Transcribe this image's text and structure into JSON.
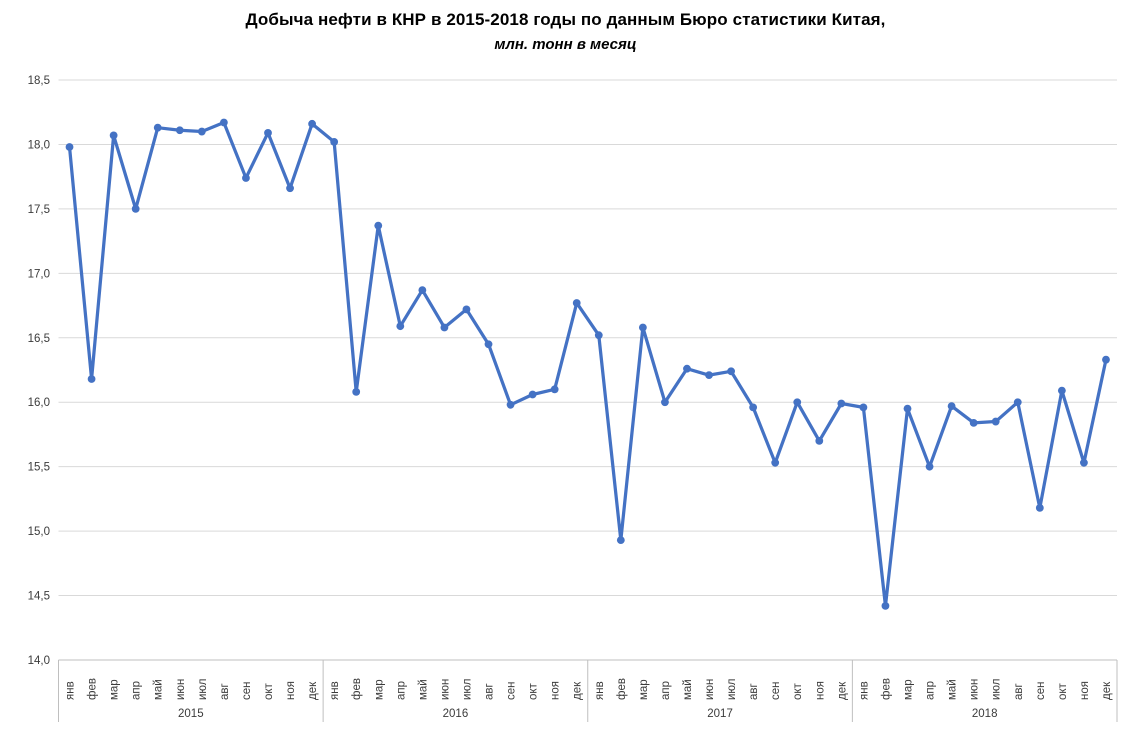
{
  "chart_data": {
    "type": "line",
    "title": "Добыча нефти в КНР в 2015-2018 годы по данным Бюро статистики Китая,",
    "subtitle": "млн. тонн в месяц",
    "xlabel": "",
    "ylabel": "",
    "ylim": [
      14.0,
      18.5
    ],
    "ytick_step": 0.5,
    "ytick_labels_top_to_bottom": [
      "18,5",
      "18,0",
      "17,5",
      "17,0",
      "16,5",
      "16,0",
      "15,5",
      "15,0",
      "14,5",
      "14,0"
    ],
    "month_labels": [
      "янв",
      "фев",
      "мар",
      "апр",
      "май",
      "июн",
      "июл",
      "авг",
      "сен",
      "окт",
      "ноя",
      "дек"
    ],
    "grid": true,
    "legend": "none",
    "line_color": "#4472C4",
    "marker": "circle",
    "gridline_color": "#D9D9D9",
    "axis_color": "#BFBFBF",
    "series": [
      {
        "year": "2015",
        "values": [
          17.98,
          16.18,
          18.07,
          17.5,
          18.13,
          18.11,
          18.1,
          18.17,
          17.74,
          18.09,
          17.66,
          18.16
        ]
      },
      {
        "year": "2016",
        "values": [
          18.02,
          16.08,
          17.37,
          16.59,
          16.87,
          16.58,
          16.72,
          16.45,
          15.98,
          16.06,
          16.1,
          16.77
        ]
      },
      {
        "year": "2017",
        "values": [
          16.52,
          14.93,
          16.58,
          16.0,
          16.26,
          16.21,
          16.24,
          15.96,
          15.53,
          16.0,
          15.7,
          15.99
        ]
      },
      {
        "year": "2018",
        "values": [
          15.96,
          14.42,
          15.95,
          15.5,
          15.97,
          15.84,
          15.85,
          16.0,
          15.18,
          16.09,
          15.53,
          16.33
        ]
      }
    ]
  }
}
